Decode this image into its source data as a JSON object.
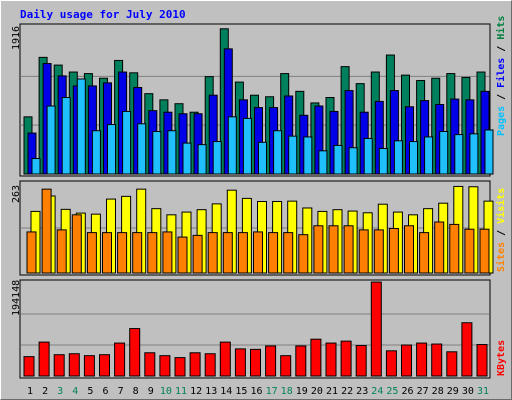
{
  "title": "Daily usage for July 2010",
  "chart_data": [
    {
      "type": "bar",
      "panel": "top",
      "ymax_label": "1916",
      "ylim": [
        0,
        1916
      ],
      "legend": [
        {
          "name": "Pages",
          "color": "#00c0ff"
        },
        {
          "name": "Files",
          "color": "#0000ff"
        },
        {
          "name": "Hits",
          "color": "#008040"
        }
      ],
      "series": [
        {
          "name": "Hits",
          "color": "#00805c",
          "values": [
            740,
            1510,
            1410,
            1320,
            1300,
            1240,
            1470,
            1310,
            1040,
            960,
            910,
            800,
            1260,
            1880,
            1190,
            1020,
            1000,
            1300,
            1070,
            920,
            990,
            1390,
            1170,
            1320,
            1540,
            1280,
            1210,
            1240,
            1300,
            1250,
            1320
          ]
        },
        {
          "name": "Files",
          "color": "#0000e8",
          "values": [
            530,
            1430,
            1270,
            1140,
            1140,
            1180,
            1320,
            1120,
            820,
            800,
            780,
            780,
            1020,
            1620,
            960,
            860,
            860,
            1010,
            760,
            880,
            810,
            1080,
            800,
            940,
            1080,
            870,
            950,
            900,
            970,
            960,
            1070
          ]
        },
        {
          "name": "Pages",
          "color": "#20c0ff",
          "values": [
            200,
            880,
            990,
            1230,
            560,
            640,
            810,
            650,
            550,
            560,
            400,
            380,
            420,
            740,
            720,
            410,
            560,
            490,
            480,
            300,
            370,
            340,
            460,
            330,
            430,
            420,
            480,
            550,
            510,
            520,
            570
          ]
        }
      ]
    },
    {
      "type": "bar",
      "panel": "middle",
      "ymax_label": "263",
      "ylim": [
        0,
        263
      ],
      "legend": [
        {
          "name": "Sites",
          "color": "#ff8000"
        },
        {
          "name": "Visits",
          "color": "#ffff00"
        }
      ],
      "series": [
        {
          "name": "Visits",
          "color": "#ffff00",
          "values": [
            180,
            225,
            186,
            175,
            172,
            216,
            224,
            245,
            188,
            170,
            178,
            185,
            202,
            242,
            218,
            209,
            209,
            210,
            190,
            180,
            185,
            181,
            176,
            201,
            178,
            170,
            188,
            204,
            253,
            252,
            210
          ]
        },
        {
          "name": "Sites",
          "color": "#ff8000",
          "values": [
            120,
            245,
            126,
            170,
            118,
            118,
            118,
            118,
            118,
            120,
            105,
            110,
            118,
            118,
            118,
            120,
            118,
            118,
            112,
            138,
            138,
            138,
            126,
            126,
            130,
            138,
            118,
            149,
            142,
            128,
            128
          ]
        }
      ]
    },
    {
      "type": "bar",
      "panel": "bottom",
      "ymax_label": "194148",
      "ylim": [
        0,
        194148
      ],
      "legend": [
        {
          "name": "KBytes",
          "color": "#ff0000"
        }
      ],
      "series": [
        {
          "name": "KBytes",
          "color": "#ff0000",
          "values": [
            40000,
            70000,
            44000,
            46000,
            42000,
            44000,
            68000,
            98000,
            48000,
            42000,
            38000,
            48000,
            46000,
            70000,
            56000,
            55000,
            62000,
            42000,
            62000,
            76000,
            68000,
            72000,
            63000,
            194000,
            52000,
            64000,
            68000,
            66000,
            50000,
            110000,
            65000
          ]
        }
      ]
    }
  ],
  "days": [
    "1",
    "2",
    "3",
    "4",
    "5",
    "6",
    "7",
    "8",
    "9",
    "10",
    "11",
    "12",
    "13",
    "14",
    "15",
    "16",
    "17",
    "18",
    "19",
    "20",
    "21",
    "22",
    "23",
    "24",
    "25",
    "26",
    "27",
    "28",
    "29",
    "30",
    "31"
  ],
  "weekend_days": [
    "3",
    "4",
    "10",
    "11",
    "17",
    "18",
    "24",
    "25",
    "31"
  ],
  "colors": {
    "weekday": "#000000",
    "weekend": "#00805c"
  }
}
